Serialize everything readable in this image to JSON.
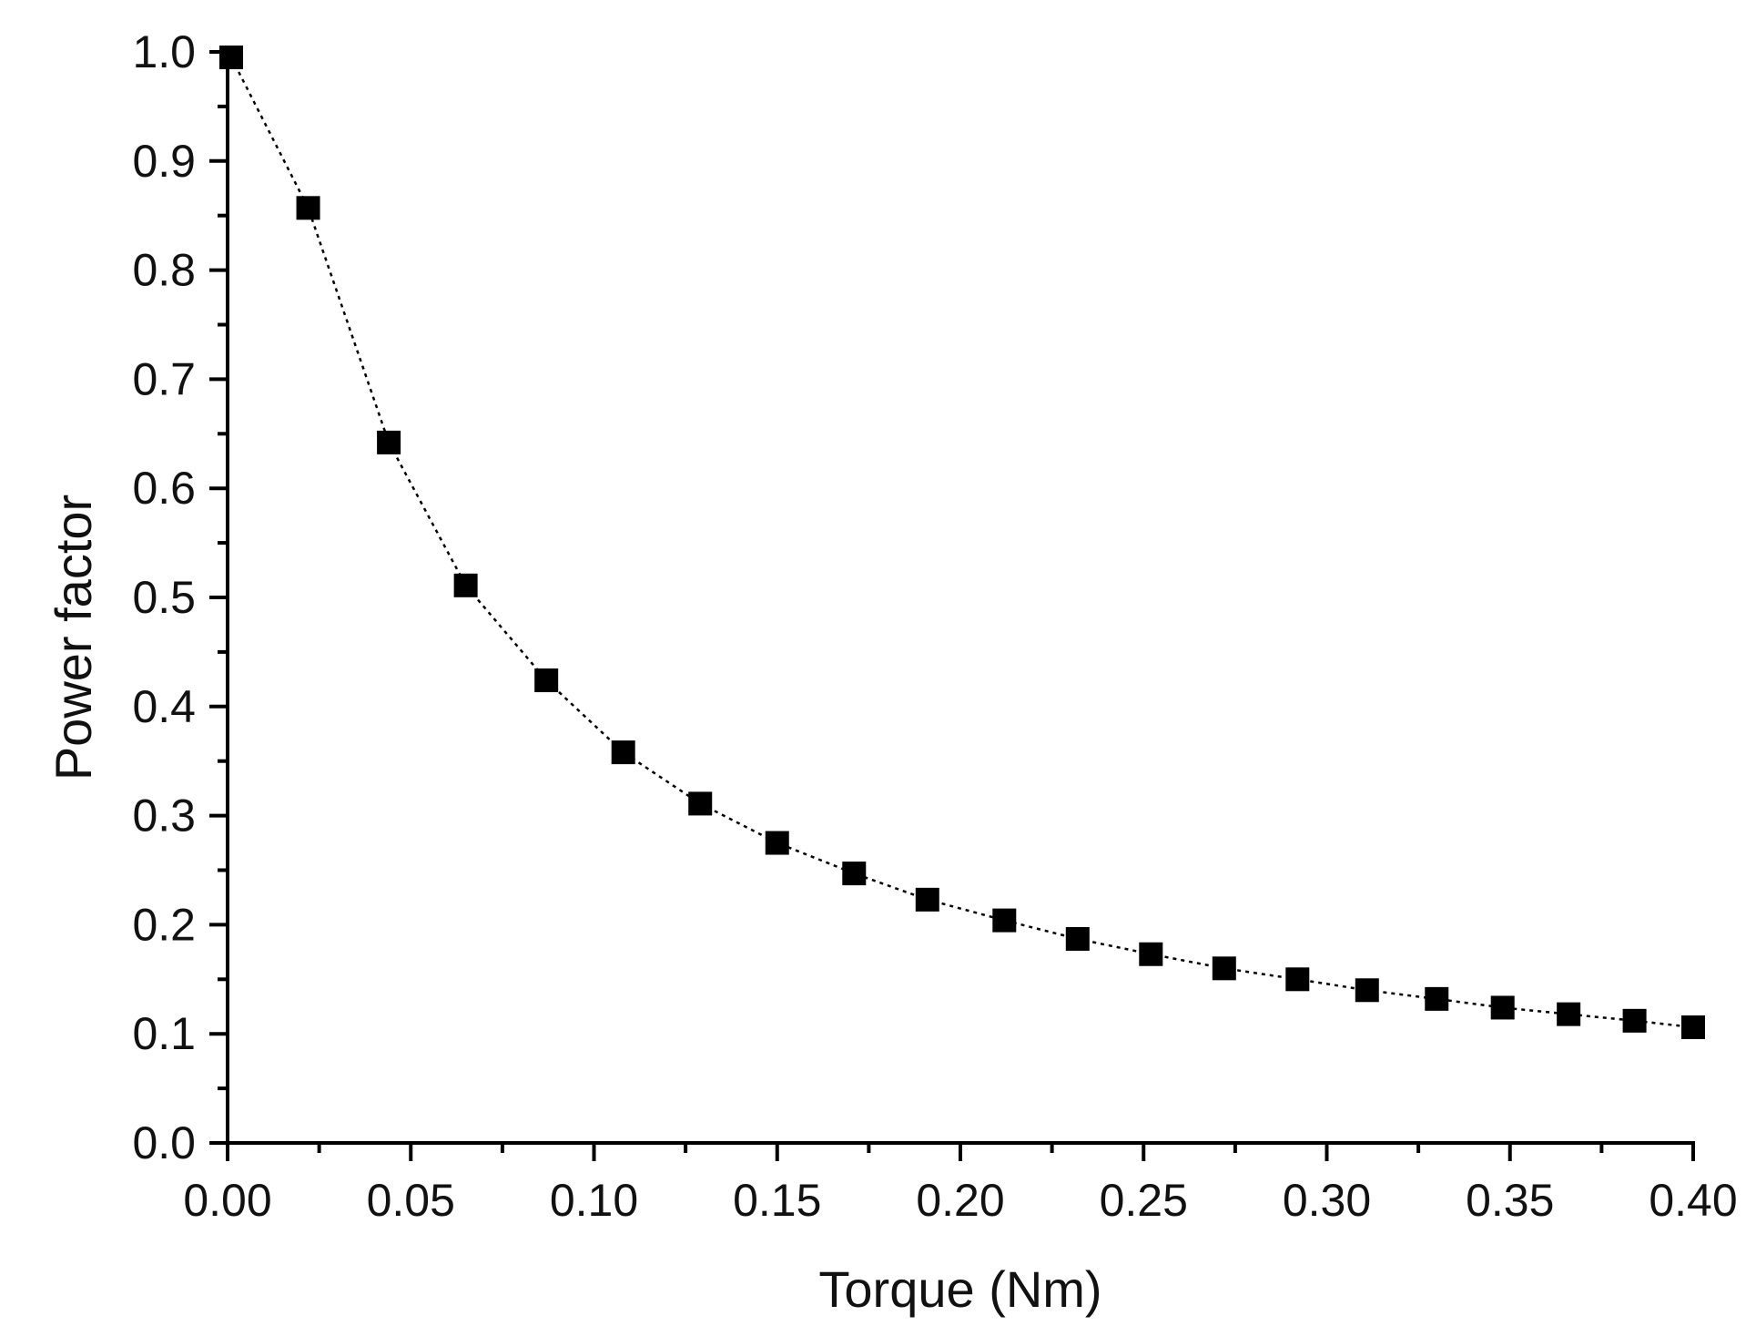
{
  "chart_data": {
    "type": "line",
    "title": "",
    "xlabel": "Torque (Nm)",
    "ylabel": "Power factor",
    "xlim": [
      0.0,
      0.4
    ],
    "ylim": [
      0.0,
      1.0
    ],
    "x_ticks": [
      "0.00",
      "0.05",
      "0.10",
      "0.15",
      "0.20",
      "0.25",
      "0.30",
      "0.35",
      "0.40"
    ],
    "y_ticks": [
      "0.0",
      "0.1",
      "0.2",
      "0.3",
      "0.4",
      "0.5",
      "0.6",
      "0.7",
      "0.8",
      "0.9",
      "1.0"
    ],
    "grid": false,
    "legend": "none",
    "line_style": "dotted",
    "marker": "square",
    "color": "#000000",
    "series": [
      {
        "x": [
          0.001,
          0.022,
          0.044,
          0.065,
          0.087,
          0.108,
          0.129,
          0.15,
          0.171,
          0.191,
          0.212,
          0.232,
          0.252,
          0.272,
          0.292,
          0.311,
          0.33,
          0.348,
          0.366,
          0.384,
          0.4
        ],
        "y": [
          0.995,
          0.857,
          0.642,
          0.511,
          0.424,
          0.358,
          0.311,
          0.275,
          0.247,
          0.223,
          0.204,
          0.187,
          0.173,
          0.16,
          0.15,
          0.14,
          0.132,
          0.124,
          0.118,
          0.112,
          0.106
        ]
      }
    ]
  }
}
